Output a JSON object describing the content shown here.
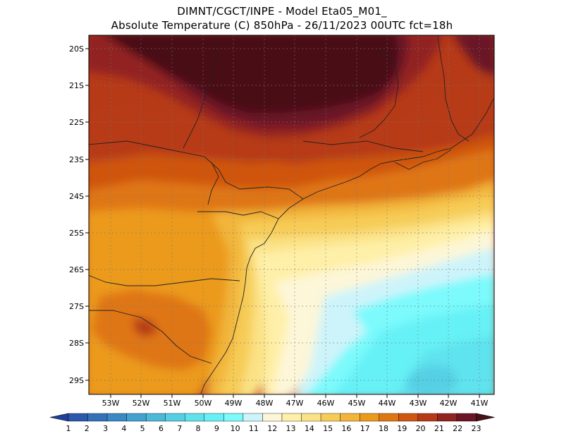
{
  "title_line1": "DIMNT/CGCT/INPE -  Model Eta05_M01_",
  "title_line2": "Absolute Temperature (C) 850hPa -  26/11/2023 00UTC fct=18h",
  "lat_labels": [
    "20S",
    "21S",
    "22S",
    "23S",
    "24S",
    "25S",
    "26S",
    "27S",
    "28S",
    "29S"
  ],
  "lon_labels": [
    "53W",
    "52W",
    "51W",
    "50W",
    "49W",
    "48W",
    "47W",
    "46W",
    "45W",
    "44W",
    "43W",
    "42W",
    "41W"
  ],
  "colorbar": {
    "labels": [
      "1",
      "2",
      "3",
      "4",
      "5",
      "6",
      "7",
      "8",
      "9",
      "10",
      "11",
      "12",
      "13",
      "14",
      "15",
      "16",
      "17",
      "18",
      "19",
      "20",
      "21",
      "22",
      "23"
    ],
    "colors": [
      "#1f3f9a",
      "#2a58ad",
      "#3471b9",
      "#3a88c4",
      "#42a1cf",
      "#4cb8da",
      "#54cfe4",
      "#5ee3ee",
      "#66f1f6",
      "#7cfafc",
      "#cdf4fa",
      "#fdf6d8",
      "#fef0a8",
      "#fbe286",
      "#f6cc57",
      "#f2b53a",
      "#eb9a1a",
      "#df7612",
      "#cf5511",
      "#b63a18",
      "#922420",
      "#6b1526",
      "#4a1018"
    ]
  },
  "icons": {
    "colorbar_left_arrow": "left-triangle",
    "colorbar_right_arrow": "right-triangle"
  }
}
